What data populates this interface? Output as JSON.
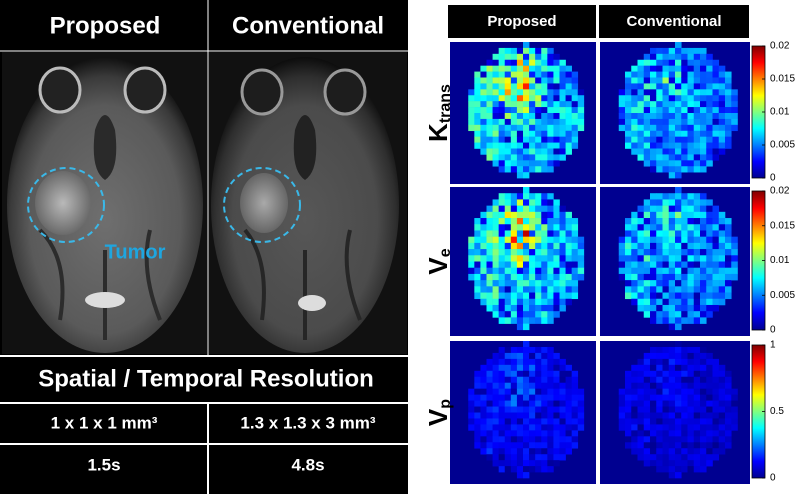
{
  "left_panel": {
    "columns": [
      "Proposed",
      "Conventional"
    ],
    "annotation": "Tumor",
    "table": {
      "title": "Spatial / Temporal Resolution",
      "rows": [
        [
          "1 x 1 x 1 mm³",
          "1.3 x 1.3 x 3 mm³"
        ],
        [
          "1.5s",
          "4.8s"
        ]
      ]
    }
  },
  "right_panel": {
    "columns": [
      "Proposed",
      "Conventional"
    ],
    "rows": [
      {
        "label": {
          "main": "K",
          "sub": "trans"
        },
        "colorbar": {
          "lim": [
            0,
            0.02
          ],
          "ticks": [
            0,
            0.005,
            0.01,
            0.015,
            0.02
          ]
        }
      },
      {
        "label": {
          "main": "V",
          "sub": "e"
        },
        "colorbar": {
          "lim": [
            0,
            0.02
          ],
          "ticks": [
            0,
            0.005,
            0.01,
            0.015,
            0.02
          ]
        }
      },
      {
        "label": {
          "main": "V",
          "sub": "p"
        },
        "colorbar": {
          "lim": [
            0,
            1
          ],
          "ticks": [
            0,
            0.5,
            1
          ]
        }
      }
    ]
  }
}
